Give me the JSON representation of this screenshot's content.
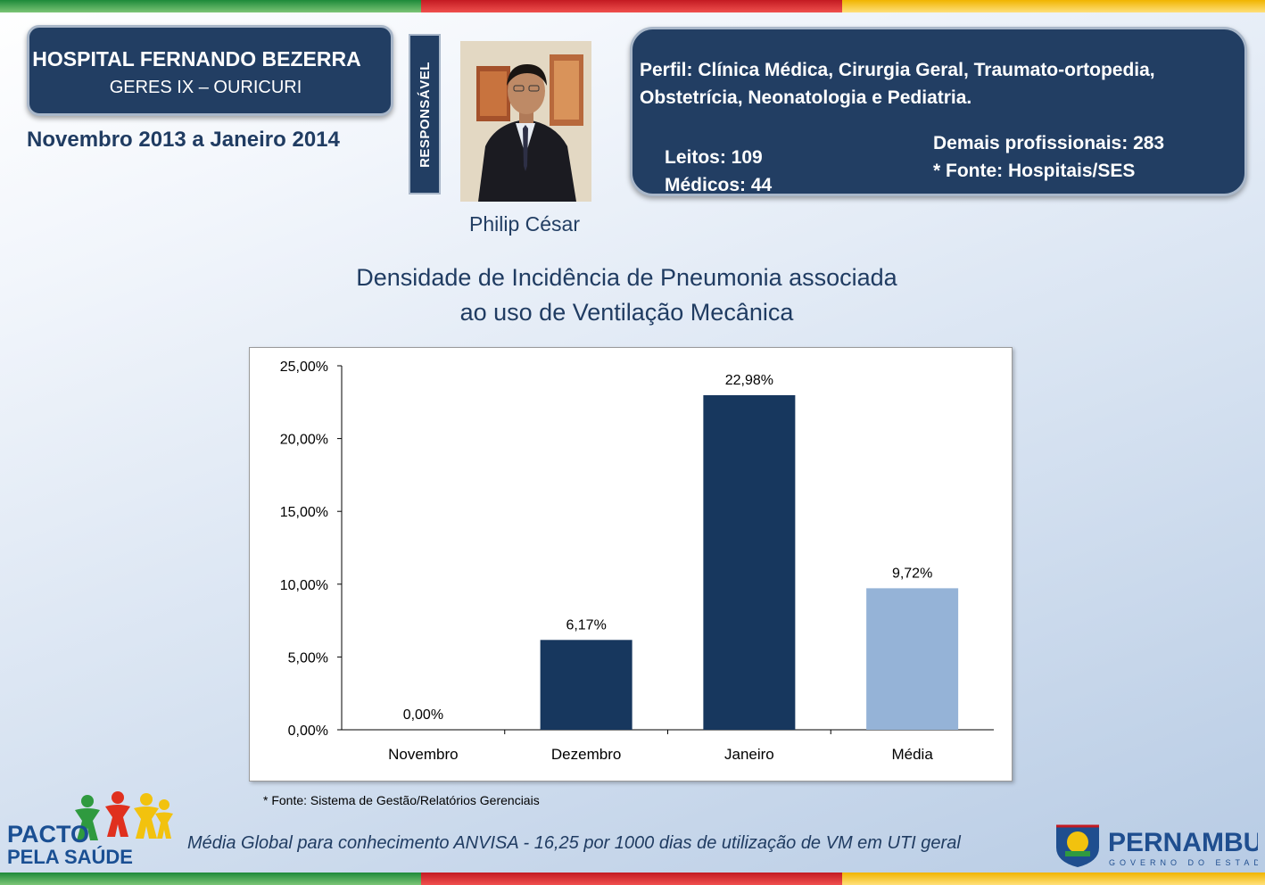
{
  "header": {
    "hospital_name": "HOSPITAL FERNANDO BEZERRA",
    "geres": "GERES IX – OURICURI",
    "period": "Novembro 2013 a Janeiro 2014",
    "responsible_label": "RESPONSÁVEL",
    "responsible_name": "Philip César"
  },
  "profile": {
    "text": "Perfil: Clínica Médica, Cirurgia Geral, Traumato-ortopedia, Obstetrícia, Neonatologia e Pediatria.",
    "beds": "Leitos: 109",
    "doctors": "Médicos: 44",
    "other_professionals": "Demais profissionais: 283",
    "source": "* Fonte: Hospitais/SES"
  },
  "chart_title_line1": "Densidade de Incidência de Pneumonia associada",
  "chart_title_line2": "ao uso de Ventilação Mecânica",
  "chart_data": {
    "type": "bar",
    "title": "Densidade de Incidência de Pneumonia associada ao uso de Ventilação Mecânica",
    "categories": [
      "Novembro",
      "Dezembro",
      "Janeiro",
      "Média"
    ],
    "values": [
      0.0,
      6.17,
      22.98,
      9.72
    ],
    "value_labels": [
      "0,00%",
      "6,17%",
      "22,98%",
      "9,72%"
    ],
    "ytick_values": [
      0,
      5,
      10,
      15,
      20,
      25
    ],
    "ytick_labels": [
      "0,00%",
      "5,00%",
      "10,00%",
      "15,00%",
      "20,00%",
      "25,00%"
    ],
    "ylim": [
      0,
      25
    ],
    "xlabel": "",
    "ylabel": "",
    "bar_colors": [
      "#17375e",
      "#17375e",
      "#17375e",
      "#95b3d7"
    ],
    "grid": false
  },
  "footer": {
    "chart_source": "* Fonte: Sistema de Gestão/Relatórios Gerenciais",
    "global_note": "Média Global para conhecimento ANVISA - 16,25 por 1000 dias de utilização de VM em UTI geral",
    "logo_left_line1": "PACTO",
    "logo_left_line2": "PELA SAÚDE",
    "logo_right_title": "PERNAMBUCO",
    "logo_right_subtitle": "GOVERNO DO ESTADO"
  },
  "colors": {
    "navy": "#223e63",
    "dark_bar": "#17375e",
    "light_bar": "#95b3d7"
  }
}
